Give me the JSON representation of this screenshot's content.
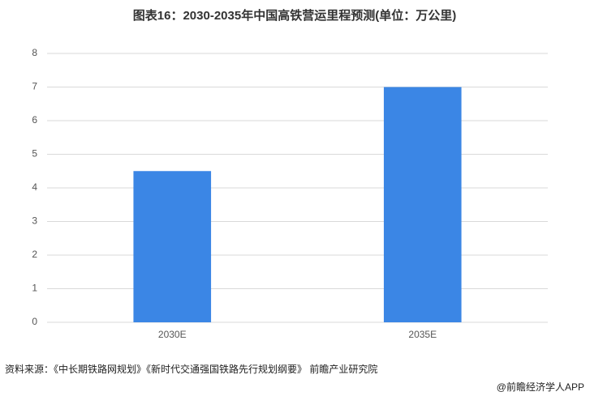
{
  "chart_data": {
    "type": "bar",
    "title": "图表16：2030-2035年中国高铁营运里程预测(单位：万公里)",
    "categories": [
      "2030E",
      "2035E"
    ],
    "values": [
      4.5,
      7
    ],
    "color": "#3b86e5",
    "ylim": [
      0,
      8
    ],
    "yticks": [
      0,
      1,
      2,
      3,
      4,
      5,
      6,
      7,
      8
    ],
    "grid": true,
    "source": "资料来源：《中长期铁路网规划》《新时代交通强国铁路先行规划纲要》 前瞻产业研究院",
    "credit": "@前瞻经济学人APP"
  }
}
